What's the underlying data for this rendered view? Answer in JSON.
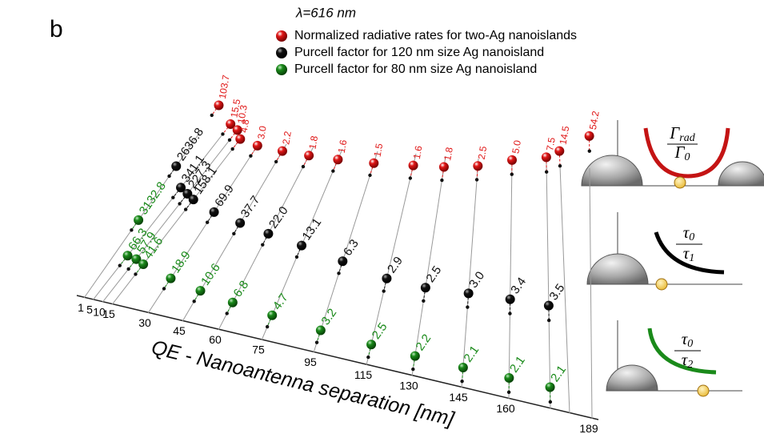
{
  "chart_data": {
    "type": "scatter",
    "panel_label": "b",
    "title": "λ=616 nm",
    "xlabel": "QE - Nanoantenna separation [nm]",
    "categories": [
      1,
      5,
      10,
      15,
      30,
      45,
      60,
      75,
      95,
      115,
      130,
      145,
      160,
      null,
      null,
      189
    ],
    "series": [
      {
        "name": "Normalized radiative rates for two-Ag nanoislands",
        "color": "#e01818",
        "values": [
          103.7,
          15.5,
          10.3,
          4.8,
          3.0,
          2.2,
          1.8,
          1.6,
          1.5,
          1.6,
          1.8,
          2.5,
          5.0,
          7.5,
          14.5,
          54.2
        ],
        "value_labels": [
          "103.7",
          "15.5",
          "10.3",
          "4.8",
          "3.0",
          "2.2",
          "1.8",
          "1.6",
          "1.5",
          "1.6",
          "1.8",
          "2.5",
          "5.0",
          "7.5",
          "14.5",
          "54.2"
        ]
      },
      {
        "name": "Purcell factor for 120 nm size Ag nanoisland",
        "color": "#111111",
        "values": [
          2636.8,
          341.1,
          227.3,
          158.1,
          69.9,
          37.7,
          22.0,
          13.1,
          6.3,
          2.9,
          2.5,
          3.0,
          3.4,
          3.5,
          null,
          null
        ],
        "value_labels": [
          "2636.8",
          "341.1",
          "227.3",
          "158.1",
          "69.9",
          "37.7",
          "22.0",
          "13.1",
          "6.3",
          "2.9",
          "2.5",
          "3.0",
          "3.4",
          "3.5",
          null,
          null
        ]
      },
      {
        "name": "Purcell factor for 80 nm size Ag nanoisland",
        "color": "#1a8a1a",
        "values": [
          3132.8,
          66.3,
          57.9,
          41.6,
          18.9,
          10.6,
          6.8,
          4.7,
          3.2,
          2.5,
          2.2,
          2.1,
          2.1,
          2.1,
          null,
          null
        ],
        "value_labels": [
          "3132.8",
          "66.3",
          "57.9",
          "41.6",
          "18.9",
          "10.6",
          "6.8",
          "4.7",
          "3.2",
          "2.5",
          "2.2",
          "2.1",
          "2.1",
          "2.1",
          null,
          null
        ]
      }
    ]
  },
  "insets": [
    {
      "num": [
        "Γ",
        "rad"
      ],
      "den": [
        "Γ",
        "0"
      ]
    },
    {
      "num": [
        "τ",
        "0"
      ],
      "den": [
        "τ",
        "1"
      ]
    },
    {
      "num": [
        "τ",
        "0"
      ],
      "den": [
        "τ",
        "2"
      ]
    }
  ]
}
